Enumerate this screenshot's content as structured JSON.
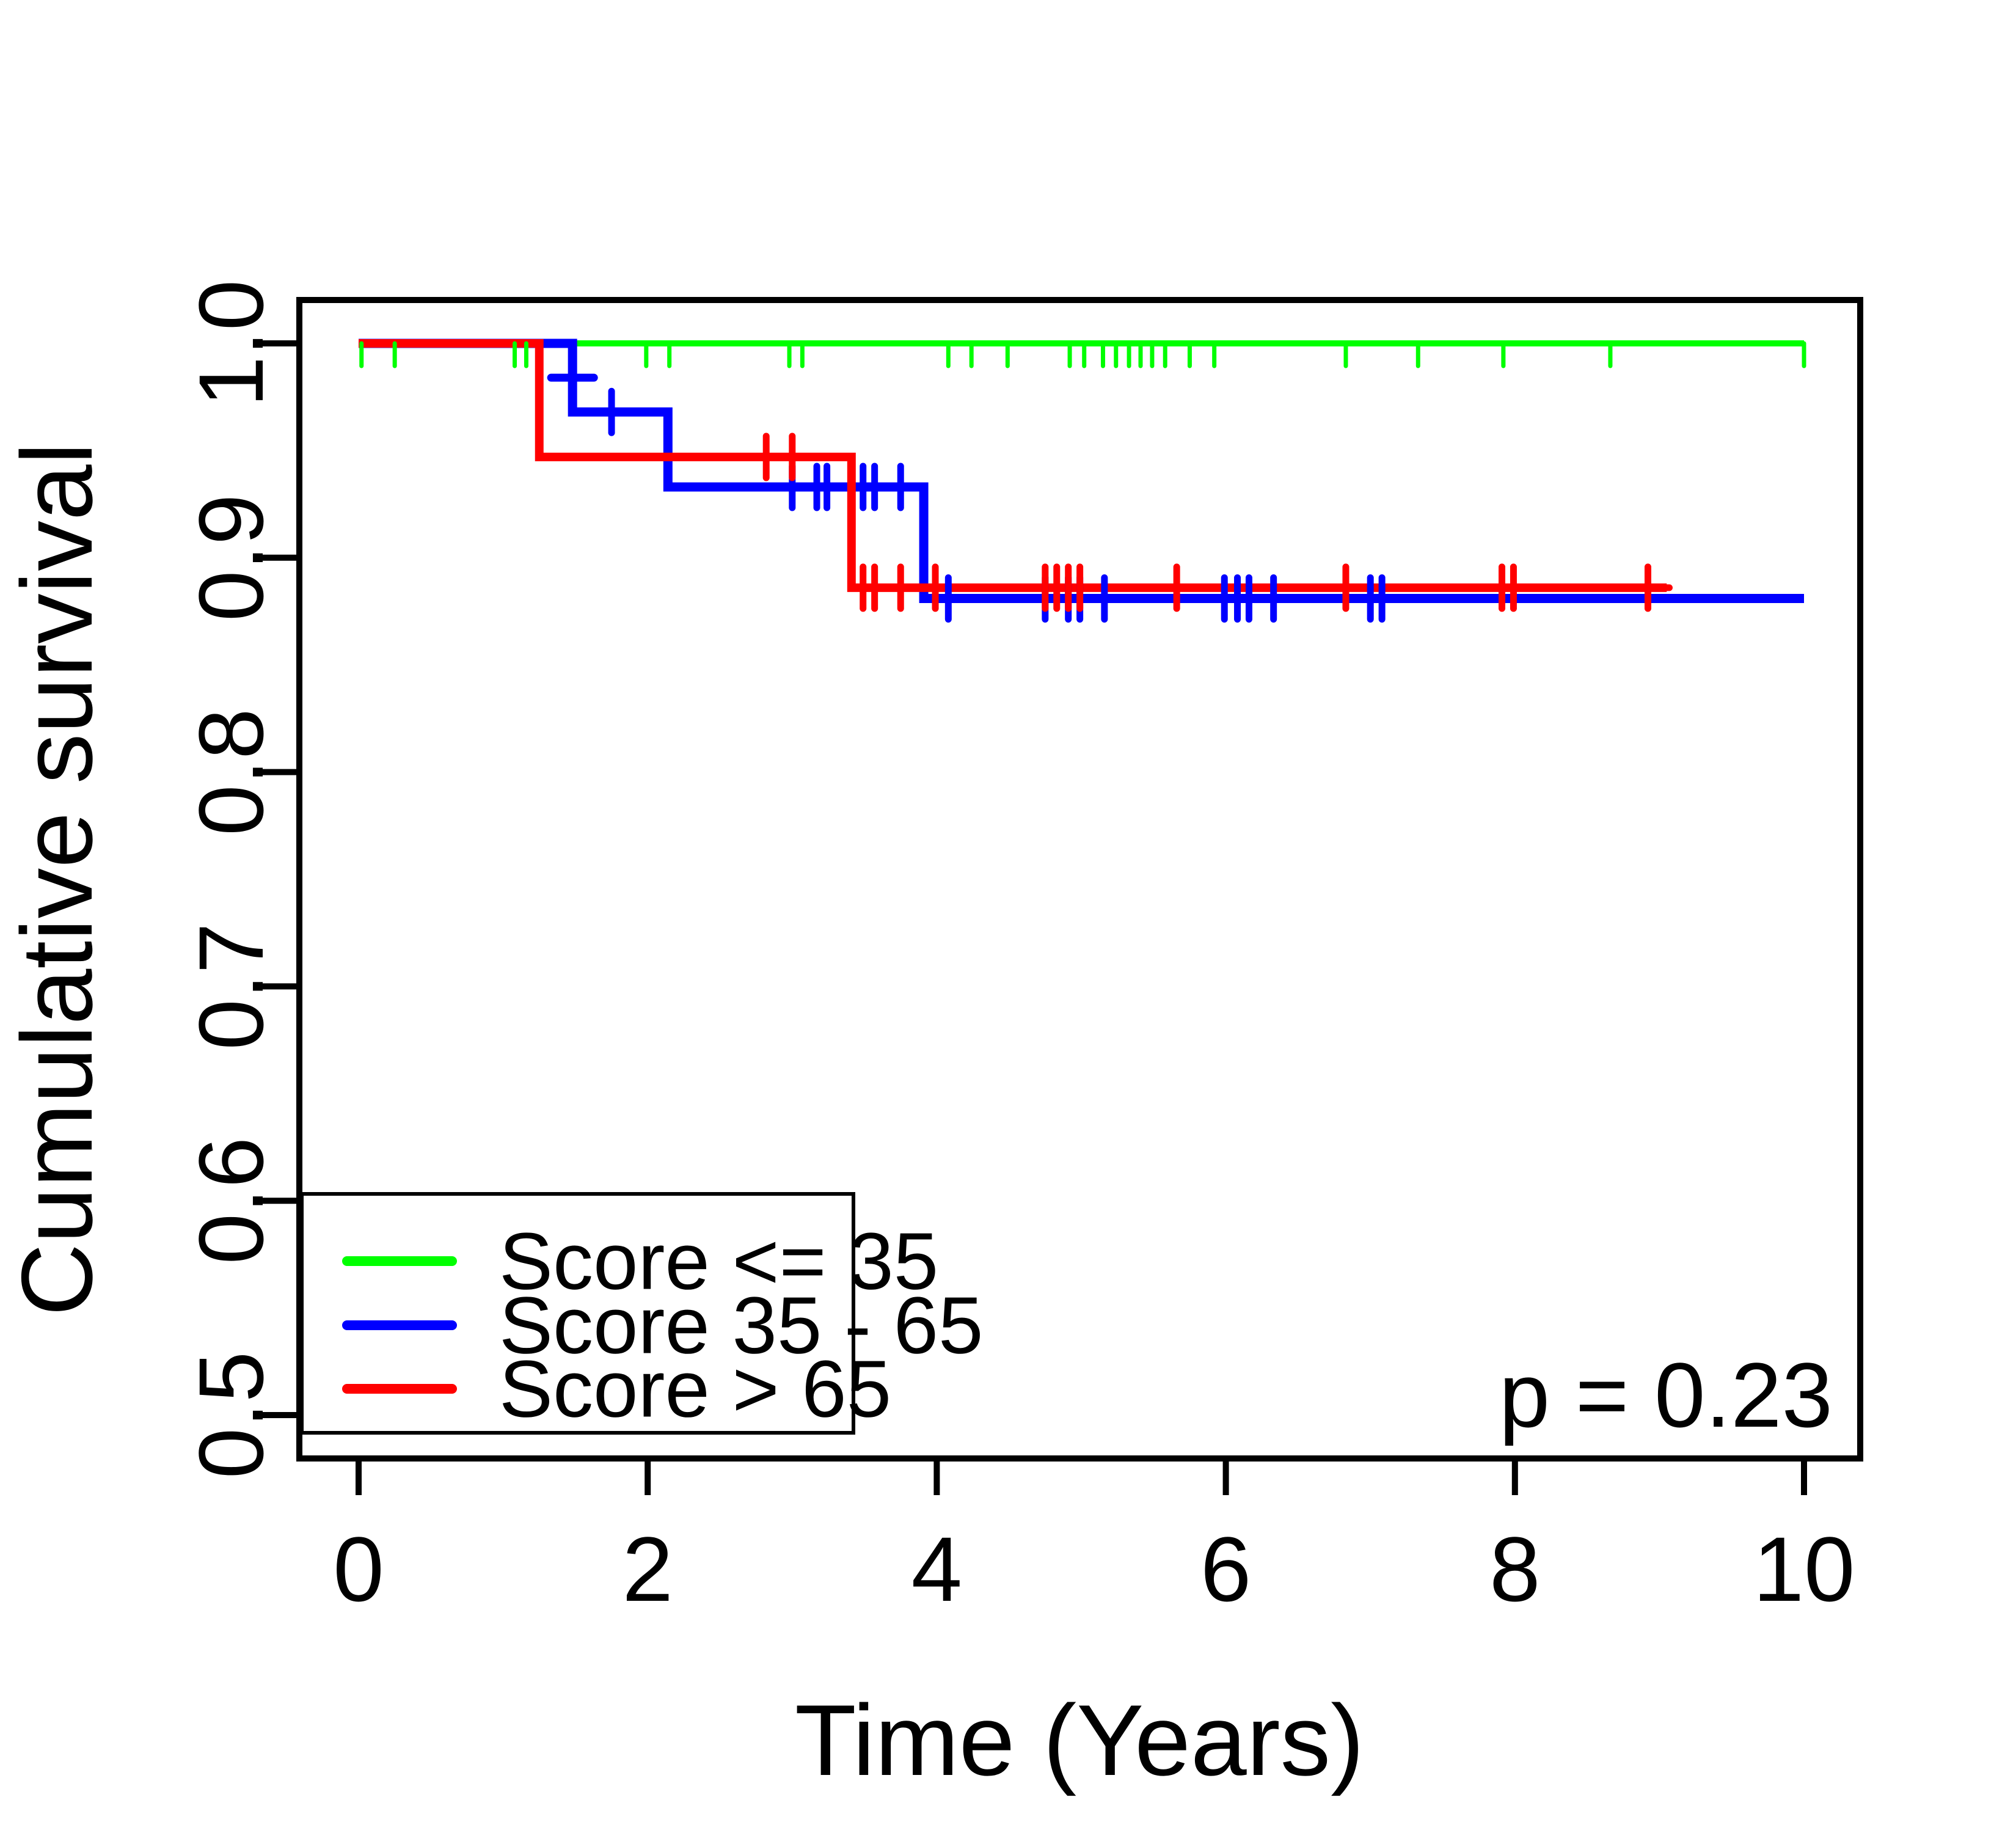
{
  "figure": {
    "xlabel": "Time (Years)",
    "ylabel": "Cumulative survival",
    "p_value_label": "p = 0.23",
    "background_color": "#ffffff",
    "axis_color": "#000000"
  },
  "legend": {
    "items": [
      {
        "label": "Score <= 35",
        "color": "#00ff00"
      },
      {
        "label": "Score 35 - 65",
        "color": "#0000ff"
      },
      {
        "label": "Score > 65",
        "color": "#ff0000"
      }
    ]
  },
  "chart_data": {
    "type": "line",
    "subtype": "kaplan-meier-step",
    "title": "",
    "xlabel": "Time (Years)",
    "ylabel": "Cumulative survival",
    "p_value": "p = 0.23",
    "xlim": [
      0,
      10
    ],
    "ylim": [
      0.5,
      1.0
    ],
    "x_ticks": [
      0,
      2,
      4,
      6,
      8,
      10
    ],
    "x_tick_labels": [
      "0",
      "2",
      "4",
      "6",
      "8",
      "10"
    ],
    "y_ticks": [
      1.0,
      0.9,
      0.8,
      0.7,
      0.6,
      0.5
    ],
    "y_tick_labels": [
      "1.0",
      "0.9",
      "0.8",
      "0.7",
      "0.6",
      "0.5"
    ],
    "grid": false,
    "legend_position": "bottom-left",
    "series": [
      {
        "name": "Score <= 35",
        "color": "#00ff00",
        "line_width": 10,
        "steps": [
          [
            0,
            1.0
          ],
          [
            10,
            1.0
          ]
        ],
        "censors": [
          {
            "t": 0.02,
            "s": 1.0,
            "style": "down"
          },
          {
            "t": 0.25,
            "s": 1.0,
            "style": "down"
          },
          {
            "t": 1.08,
            "s": 1.0,
            "style": "down"
          },
          {
            "t": 1.16,
            "s": 1.0,
            "style": "down"
          },
          {
            "t": 1.99,
            "s": 1.0,
            "style": "down"
          },
          {
            "t": 2.15,
            "s": 1.0,
            "style": "down"
          },
          {
            "t": 2.98,
            "s": 1.0,
            "style": "down"
          },
          {
            "t": 3.07,
            "s": 1.0,
            "style": "down"
          },
          {
            "t": 4.08,
            "s": 1.0,
            "style": "down"
          },
          {
            "t": 4.24,
            "s": 1.0,
            "style": "down"
          },
          {
            "t": 4.49,
            "s": 1.0,
            "style": "down"
          },
          {
            "t": 4.92,
            "s": 1.0,
            "style": "down"
          },
          {
            "t": 5.02,
            "s": 1.0,
            "style": "down"
          },
          {
            "t": 5.15,
            "s": 1.0,
            "style": "down"
          },
          {
            "t": 5.24,
            "s": 1.0,
            "style": "down"
          },
          {
            "t": 5.33,
            "s": 1.0,
            "style": "down"
          },
          {
            "t": 5.41,
            "s": 1.0,
            "style": "down"
          },
          {
            "t": 5.49,
            "s": 1.0,
            "style": "down"
          },
          {
            "t": 5.58,
            "s": 1.0,
            "style": "down"
          },
          {
            "t": 5.75,
            "s": 1.0,
            "style": "down"
          },
          {
            "t": 5.92,
            "s": 1.0,
            "style": "down"
          },
          {
            "t": 6.83,
            "s": 1.0,
            "style": "down"
          },
          {
            "t": 7.33,
            "s": 1.0,
            "style": "down"
          },
          {
            "t": 7.92,
            "s": 1.0,
            "style": "down"
          },
          {
            "t": 8.66,
            "s": 1.0,
            "style": "down"
          },
          {
            "t": 10.0,
            "s": 1.0,
            "style": "down"
          }
        ]
      },
      {
        "name": "Score 35 - 65",
        "color": "#0000ff",
        "line_width": 15,
        "steps": [
          [
            0,
            1.0
          ],
          [
            1.48,
            1.0
          ],
          [
            1.48,
            0.968
          ],
          [
            2.14,
            0.968
          ],
          [
            2.14,
            0.933
          ],
          [
            3.91,
            0.933
          ],
          [
            3.91,
            0.881
          ],
          [
            10,
            0.881
          ]
        ],
        "censors": [
          {
            "t": 1.48,
            "s": 0.984,
            "style": "hbar"
          },
          {
            "t": 1.75,
            "s": 0.968,
            "style": "cross"
          },
          {
            "t": 3.0,
            "s": 0.933,
            "style": "cross"
          },
          {
            "t": 3.17,
            "s": 0.933,
            "style": "cross"
          },
          {
            "t": 3.24,
            "s": 0.933,
            "style": "cross"
          },
          {
            "t": 3.49,
            "s": 0.933,
            "style": "cross"
          },
          {
            "t": 3.57,
            "s": 0.933,
            "style": "cross"
          },
          {
            "t": 3.75,
            "s": 0.933,
            "style": "cross"
          },
          {
            "t": 4.08,
            "s": 0.881,
            "style": "cross"
          },
          {
            "t": 4.75,
            "s": 0.881,
            "style": "cross"
          },
          {
            "t": 4.91,
            "s": 0.881,
            "style": "cross"
          },
          {
            "t": 4.99,
            "s": 0.881,
            "style": "cross"
          },
          {
            "t": 5.16,
            "s": 0.881,
            "style": "cross"
          },
          {
            "t": 5.99,
            "s": 0.881,
            "style": "cross"
          },
          {
            "t": 6.08,
            "s": 0.881,
            "style": "cross"
          },
          {
            "t": 6.16,
            "s": 0.881,
            "style": "cross"
          },
          {
            "t": 6.33,
            "s": 0.881,
            "style": "cross"
          },
          {
            "t": 7.0,
            "s": 0.881,
            "style": "cross"
          },
          {
            "t": 7.08,
            "s": 0.881,
            "style": "cross"
          }
        ]
      },
      {
        "name": "Score > 65",
        "color": "#ff0000",
        "line_width": 14,
        "steps": [
          [
            0,
            1.0
          ],
          [
            1.25,
            1.0
          ],
          [
            1.25,
            0.947
          ],
          [
            3.41,
            0.947
          ],
          [
            3.41,
            0.886
          ],
          [
            9.05,
            0.886
          ]
        ],
        "censors": [
          {
            "t": 2.82,
            "s": 0.947,
            "style": "cross"
          },
          {
            "t": 3.0,
            "s": 0.947,
            "style": "cross"
          },
          {
            "t": 3.49,
            "s": 0.886,
            "style": "cross"
          },
          {
            "t": 3.57,
            "s": 0.886,
            "style": "cross"
          },
          {
            "t": 3.75,
            "s": 0.886,
            "style": "cross"
          },
          {
            "t": 3.99,
            "s": 0.886,
            "style": "cross"
          },
          {
            "t": 4.75,
            "s": 0.886,
            "style": "cross"
          },
          {
            "t": 4.83,
            "s": 0.886,
            "style": "cross"
          },
          {
            "t": 4.91,
            "s": 0.886,
            "style": "cross"
          },
          {
            "t": 4.99,
            "s": 0.886,
            "style": "cross"
          },
          {
            "t": 5.66,
            "s": 0.886,
            "style": "cross"
          },
          {
            "t": 6.83,
            "s": 0.886,
            "style": "cross"
          },
          {
            "t": 7.91,
            "s": 0.886,
            "style": "cross"
          },
          {
            "t": 7.99,
            "s": 0.886,
            "style": "cross"
          },
          {
            "t": 8.92,
            "s": 0.886,
            "style": "cross-hbar"
          }
        ]
      }
    ]
  }
}
